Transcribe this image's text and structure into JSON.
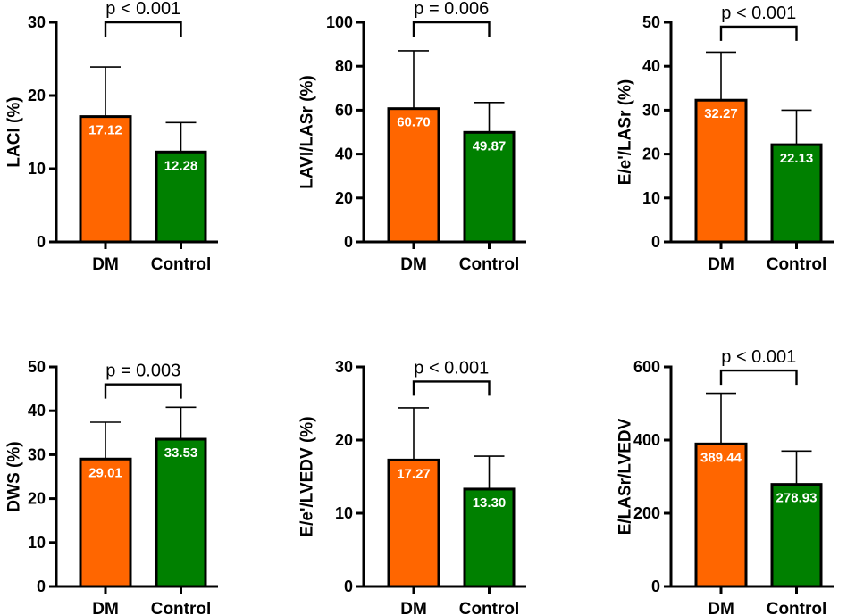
{
  "colors": {
    "dm": "#ff6600",
    "control": "#008000",
    "axis": "#000000",
    "value_text": "#ffffff"
  },
  "chart_data": [
    {
      "type": "bar",
      "ylabel": "LACI (%)",
      "categories": [
        "DM",
        "Control"
      ],
      "values": [
        17.12,
        12.28
      ],
      "value_labels": [
        "17.12",
        "12.28"
      ],
      "error_upper": [
        23.9,
        16.3
      ],
      "ylim": [
        0,
        30
      ],
      "yticks": [
        0,
        10,
        20,
        30
      ],
      "significance": "p < 0.001",
      "sig_bracket_value": 30
    },
    {
      "type": "bar",
      "ylabel": "LAVI/LASr (%)",
      "categories": [
        "DM",
        "Control"
      ],
      "values": [
        60.7,
        49.87
      ],
      "value_labels": [
        "60.70",
        "49.87"
      ],
      "error_upper": [
        87,
        63.5
      ],
      "ylim": [
        0,
        100
      ],
      "yticks": [
        0,
        20,
        40,
        60,
        80,
        100
      ],
      "significance": "p = 0.006",
      "sig_bracket_value": 100
    },
    {
      "type": "bar",
      "ylabel": "E/e'/LASr (%)",
      "categories": [
        "DM",
        "Control"
      ],
      "values": [
        32.27,
        22.13
      ],
      "value_labels": [
        "32.27",
        "22.13"
      ],
      "error_upper": [
        43.2,
        30
      ],
      "ylim": [
        0,
        50
      ],
      "yticks": [
        0,
        10,
        20,
        30,
        40,
        50
      ],
      "significance": "p < 0.001",
      "sig_bracket_value": 49
    },
    {
      "type": "bar",
      "ylabel": "DWS (%)",
      "categories": [
        "DM",
        "Control"
      ],
      "values": [
        29.01,
        33.53
      ],
      "value_labels": [
        "29.01",
        "33.53"
      ],
      "error_upper": [
        37.4,
        40.8
      ],
      "ylim": [
        0,
        50
      ],
      "yticks": [
        0,
        10,
        20,
        30,
        40,
        50
      ],
      "significance": "p = 0.003",
      "sig_bracket_value": 46
    },
    {
      "type": "bar",
      "ylabel": "E/e'/LVEDV (%)",
      "categories": [
        "DM",
        "Control"
      ],
      "values": [
        17.27,
        13.3
      ],
      "value_labels": [
        "17.27",
        "13.30"
      ],
      "error_upper": [
        24.4,
        17.8
      ],
      "ylim": [
        0,
        30
      ],
      "yticks": [
        0,
        10,
        20,
        30
      ],
      "significance": "p < 0.001",
      "sig_bracket_value": 28
    },
    {
      "type": "bar",
      "ylabel": "E/LASr/LVEDV",
      "categories": [
        "DM",
        "Control"
      ],
      "values": [
        389.44,
        278.93
      ],
      "value_labels": [
        "389.44",
        "278.93"
      ],
      "error_upper": [
        528,
        370
      ],
      "ylim": [
        0,
        600
      ],
      "yticks": [
        0,
        200,
        400,
        600
      ],
      "significance": "p < 0.001",
      "sig_bracket_value": 590
    }
  ]
}
